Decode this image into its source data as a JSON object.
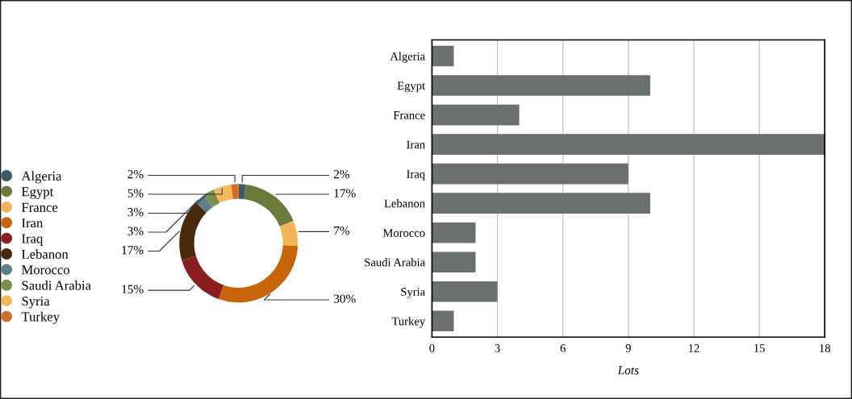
{
  "chart_data": [
    {
      "type": "donut",
      "categories": [
        "Algeria",
        "Egypt",
        "France",
        "Iran",
        "Iraq",
        "Lebanon",
        "Morocco",
        "Saudi Arabia",
        "Syria",
        "Turkey"
      ],
      "values": [
        2,
        17,
        7,
        30,
        15,
        17,
        3,
        3,
        5,
        2
      ],
      "colors": [
        "#3d5a66",
        "#6b7a3a",
        "#f2b354",
        "#c8650a",
        "#8b1f1f",
        "#4a2a0a",
        "#5f7f8a",
        "#7f8f4a",
        "#f5b85a",
        "#d0702a"
      ],
      "value_labels": [
        "2%",
        "17%",
        "7%",
        "30%",
        "15%",
        "17%",
        "3%",
        "3%",
        "5%",
        "2%"
      ],
      "legend": "left"
    },
    {
      "type": "bar",
      "orientation": "horizontal",
      "categories": [
        "Algeria",
        "Egypt",
        "France",
        "Iran",
        "Iraq",
        "Lebanon",
        "Morocco",
        "Saudi Arabia",
        "Syria",
        "Turkey"
      ],
      "values": [
        1,
        10,
        4,
        18,
        9,
        10,
        2,
        2,
        3,
        1
      ],
      "color": "#6a706d",
      "xlabel": "Lots",
      "xlim": [
        0,
        18
      ],
      "xticks": [
        0,
        3,
        6,
        9,
        12,
        15,
        18
      ],
      "grid": "x"
    }
  ]
}
